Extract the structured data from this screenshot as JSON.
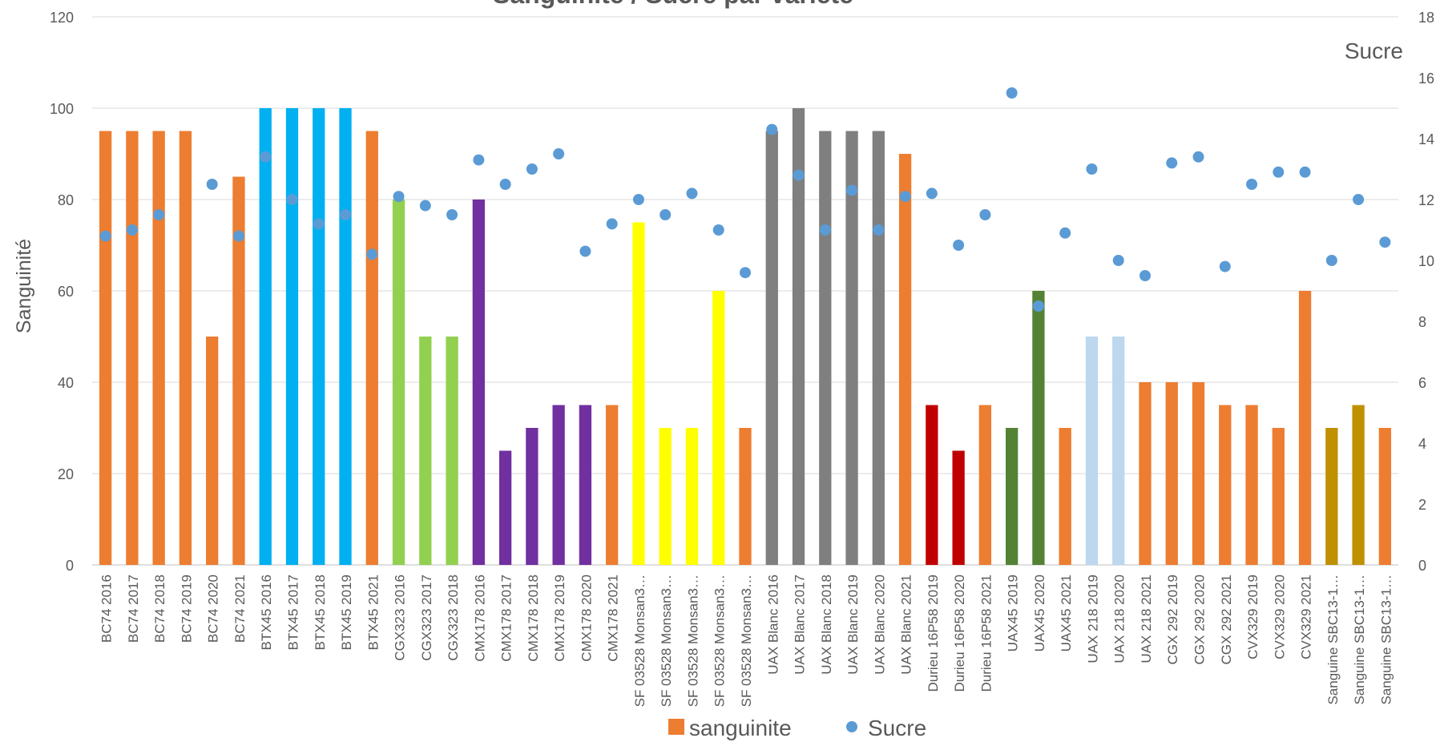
{
  "chart_data": {
    "type": "bar",
    "title": "Sanguinite / Sucre par variete",
    "ylabel": "Sanguinité",
    "y2label": "Sucre",
    "ylim": [
      0,
      120
    ],
    "y2lim": [
      0,
      18
    ],
    "yticks": [
      "0",
      "20",
      "40",
      "60",
      "80",
      "100",
      "120"
    ],
    "y2ticks": [
      "0",
      "2",
      "4",
      "6",
      "8",
      "10",
      "12",
      "14",
      "16",
      "18"
    ],
    "grid": true,
    "legend_position": "bottom",
    "categories": [
      "BC74 2016",
      "BC74 2017",
      "BC74 2018",
      "BC74 2019",
      "BC74 2020",
      "BC74 2021",
      "BTX45 2016",
      "BTX45 2017",
      "BTX45 2018",
      "BTX45 2019",
      "BTX45 2021",
      "CGX323 2016",
      "CGX323 2017",
      "CGX323 2018",
      "CMX178 2016",
      "CMX178 2017",
      "CMX178 2018",
      "CMX178 2019",
      "CMX178 2020",
      "CMX178 2021",
      "SF 03528 Monsan3…",
      "SF 03528 Monsan3…",
      "SF 03528 Monsan3…",
      "SF 03528 Monsan3…",
      "SF 03528 Monsan3…",
      "UAX Blanc 2016",
      "UAX Blanc 2017",
      "UAX Blanc 2018",
      "UAX Blanc 2019",
      "UAX Blanc 2020",
      "UAX Blanc 2021",
      "Durieu 16P58 2019",
      "Durieu 16P58 2020",
      "Durieu 16P58 2021",
      "UAX45 2019",
      "UAX45 2020",
      "UAX45 2021",
      "UAX 218 2019",
      "UAX 218 2020",
      "UAX 218 2021",
      "CGX 292 2019",
      "CGX 292 2020",
      "CGX 292 2021",
      "CVX329 2019",
      "CVX329 2020",
      "CVX329 2021",
      "Sanguine SBC13-1…",
      "Sanguine SBC13-1…",
      "Sanguine SBC13-1…"
    ],
    "series": [
      {
        "name": "sanguinite",
        "kind": "bar",
        "axis": "left",
        "legend_color": "#ED7D31",
        "values": [
          95,
          95,
          95,
          95,
          50,
          85,
          100,
          100,
          100,
          100,
          95,
          80,
          50,
          50,
          80,
          25,
          30,
          35,
          35,
          35,
          75,
          30,
          30,
          60,
          30,
          95,
          100,
          95,
          95,
          95,
          90,
          35,
          25,
          35,
          30,
          60,
          30,
          50,
          50,
          40,
          40,
          40,
          35,
          35,
          30,
          60,
          30,
          35,
          30
        ],
        "colors": [
          "#ED7D31",
          "#ED7D31",
          "#ED7D31",
          "#ED7D31",
          "#ED7D31",
          "#ED7D31",
          "#00B0F0",
          "#00B0F0",
          "#00B0F0",
          "#00B0F0",
          "#ED7D31",
          "#92D050",
          "#92D050",
          "#92D050",
          "#7030A0",
          "#7030A0",
          "#7030A0",
          "#7030A0",
          "#7030A0",
          "#ED7D31",
          "#FFFF00",
          "#FFFF00",
          "#FFFF00",
          "#FFFF00",
          "#ED7D31",
          "#7F7F7F",
          "#7F7F7F",
          "#7F7F7F",
          "#7F7F7F",
          "#7F7F7F",
          "#ED7D31",
          "#C00000",
          "#C00000",
          "#ED7D31",
          "#548235",
          "#548235",
          "#ED7D31",
          "#BDD7EE",
          "#BDD7EE",
          "#ED7D31",
          "#ED7D31",
          "#ED7D31",
          "#ED7D31",
          "#ED7D31",
          "#ED7D31",
          "#ED7D31",
          "#BF9000",
          "#BF9000",
          "#ED7D31"
        ]
      },
      {
        "name": "Sucre",
        "kind": "scatter",
        "axis": "right",
        "color": "#5B9BD5",
        "values": [
          10.8,
          11,
          11.5,
          null,
          12.5,
          10.8,
          13.4,
          12,
          11.2,
          11.5,
          10.2,
          12.1,
          11.8,
          11.5,
          13.3,
          12.5,
          13,
          13.5,
          10.3,
          11.2,
          12,
          11.5,
          12.2,
          11,
          9.6,
          14.3,
          12.8,
          11,
          12.3,
          11,
          12.1,
          12.2,
          10.5,
          11.5,
          15.5,
          8.5,
          10.9,
          13,
          10,
          9.5,
          13.2,
          13.4,
          9.8,
          12.5,
          12.9,
          12.9,
          10,
          12,
          10.6
        ]
      }
    ]
  }
}
